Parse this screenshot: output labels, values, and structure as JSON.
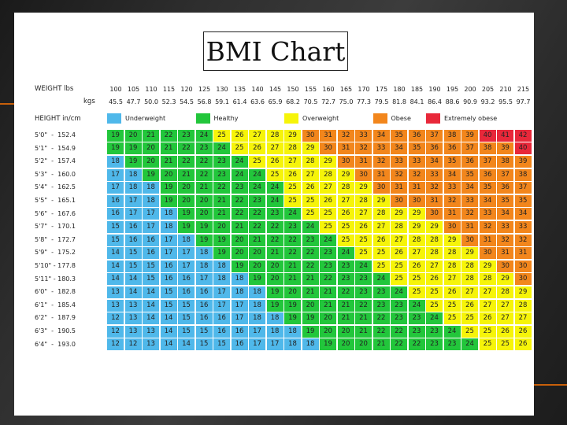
{
  "title": "BMI Chart",
  "header": {
    "weight_label": "WEIGHT lbs",
    "kgs_label": "kgs",
    "height_label": "HEIGHT in/cm"
  },
  "colors": {
    "underweight": "#4fb8ea",
    "healthy": "#22c63b",
    "overweight": "#f6f409",
    "obese": "#f2861c",
    "extremely_obese": "#e8283a"
  },
  "chart_data": {
    "type": "table",
    "weights_lbs": [
      "100",
      "105",
      "110",
      "115",
      "120",
      "125",
      "130",
      "135",
      "140",
      "145",
      "150",
      "155",
      "160",
      "165",
      "170",
      "175",
      "180",
      "185",
      "190",
      "195",
      "200",
      "205",
      "210",
      "215"
    ],
    "weights_kgs": [
      "45.5",
      "47.7",
      "50.0",
      "52.3",
      "54.5",
      "56.8",
      "59.1",
      "61.4",
      "63.6",
      "65.9",
      "68.2",
      "70.5",
      "72.7",
      "75.0",
      "77.3",
      "79.5",
      "81.8",
      "84.1",
      "86.4",
      "88.6",
      "90.9",
      "93.2",
      "95.5",
      "97.7"
    ],
    "legend": [
      {
        "label": "Underweight",
        "category": "underweight"
      },
      {
        "label": "Healthy",
        "category": "healthy"
      },
      {
        "label": "Overweight",
        "category": "overweight"
      },
      {
        "label": "Obese",
        "category": "obese"
      },
      {
        "label": "Extremely obese",
        "category": "extremely_obese"
      }
    ],
    "rows": [
      {
        "height": "5'0\"  -  152.4",
        "values": [
          19,
          20,
          21,
          22,
          23,
          24,
          25,
          26,
          27,
          28,
          29,
          30,
          31,
          32,
          33,
          34,
          35,
          36,
          37,
          38,
          39,
          40,
          41,
          42
        ]
      },
      {
        "height": "5'1\"  -  154.9",
        "values": [
          19,
          19,
          20,
          21,
          22,
          23,
          24,
          25,
          26,
          27,
          28,
          29,
          30,
          31,
          32,
          33,
          34,
          35,
          36,
          36,
          37,
          38,
          39,
          40
        ]
      },
      {
        "height": "5'2\"  -  157.4",
        "values": [
          18,
          19,
          20,
          21,
          22,
          22,
          23,
          24,
          25,
          26,
          27,
          28,
          29,
          30,
          31,
          32,
          33,
          33,
          34,
          35,
          36,
          37,
          38,
          39
        ]
      },
      {
        "height": "5'3\"  -  160.0",
        "values": [
          17,
          18,
          19,
          20,
          21,
          22,
          23,
          24,
          24,
          25,
          26,
          27,
          28,
          29,
          30,
          31,
          32,
          32,
          33,
          34,
          35,
          36,
          37,
          38
        ]
      },
      {
        "height": "5'4\"  -  162.5",
        "values": [
          17,
          18,
          18,
          19,
          20,
          21,
          22,
          23,
          24,
          24,
          25,
          26,
          27,
          28,
          29,
          30,
          31,
          31,
          32,
          33,
          34,
          35,
          36,
          37
        ]
      },
      {
        "height": "5'5\"  -  165.1",
        "values": [
          16,
          17,
          18,
          19,
          20,
          20,
          21,
          22,
          23,
          24,
          25,
          25,
          26,
          27,
          28,
          29,
          30,
          30,
          31,
          32,
          33,
          34,
          35,
          35
        ]
      },
      {
        "height": "5'6\"  -  167.6",
        "values": [
          16,
          17,
          17,
          18,
          19,
          20,
          21,
          22,
          22,
          23,
          24,
          25,
          25,
          26,
          27,
          28,
          29,
          29,
          30,
          31,
          32,
          33,
          34,
          34
        ]
      },
      {
        "height": "5'7\"  -  170.1",
        "values": [
          15,
          16,
          17,
          18,
          19,
          19,
          20,
          21,
          22,
          22,
          23,
          24,
          25,
          25,
          26,
          27,
          28,
          29,
          29,
          30,
          31,
          32,
          33,
          33
        ]
      },
      {
        "height": "5'8\"  -  172.7",
        "values": [
          15,
          16,
          16,
          17,
          18,
          19,
          19,
          20,
          21,
          22,
          22,
          23,
          24,
          25,
          25,
          26,
          27,
          28,
          28,
          29,
          30,
          31,
          32,
          32
        ]
      },
      {
        "height": "5'9\"  -  175.2",
        "values": [
          14,
          15,
          16,
          17,
          17,
          18,
          19,
          20,
          20,
          21,
          22,
          22,
          23,
          24,
          25,
          25,
          26,
          27,
          28,
          28,
          29,
          30,
          31,
          31
        ]
      },
      {
        "height": "5'10\" - 177.8",
        "values": [
          14,
          15,
          15,
          16,
          17,
          18,
          18,
          19,
          20,
          20,
          21,
          22,
          23,
          23,
          24,
          25,
          25,
          26,
          27,
          28,
          28,
          29,
          30,
          30
        ]
      },
      {
        "height": "5'11\" - 180.3",
        "values": [
          14,
          14,
          15,
          16,
          16,
          17,
          18,
          18,
          19,
          20,
          21,
          21,
          22,
          23,
          23,
          24,
          25,
          25,
          26,
          27,
          28,
          28,
          29,
          30
        ]
      },
      {
        "height": "6'0\"  -  182.8",
        "values": [
          13,
          14,
          14,
          15,
          16,
          16,
          17,
          18,
          18,
          19,
          20,
          21,
          21,
          22,
          23,
          23,
          24,
          25,
          25,
          26,
          27,
          27,
          28,
          29
        ]
      },
      {
        "height": "6'1\"  -  185.4",
        "values": [
          13,
          13,
          14,
          15,
          15,
          16,
          17,
          17,
          18,
          19,
          19,
          20,
          21,
          21,
          22,
          23,
          23,
          24,
          25,
          25,
          26,
          27,
          27,
          28
        ]
      },
      {
        "height": "6'2\"  -  187.9",
        "values": [
          12,
          13,
          14,
          14,
          15,
          16,
          16,
          17,
          18,
          18,
          19,
          19,
          20,
          21,
          21,
          22,
          23,
          23,
          24,
          25,
          25,
          26,
          27,
          27
        ]
      },
      {
        "height": "6'3\"  -  190.5",
        "values": [
          12,
          13,
          13,
          14,
          15,
          15,
          16,
          16,
          17,
          18,
          18,
          19,
          20,
          20,
          21,
          22,
          22,
          23,
          23,
          24,
          25,
          25,
          26,
          26
        ]
      },
      {
        "height": "6'4\"  -  193.0",
        "values": [
          12,
          12,
          13,
          14,
          14,
          15,
          15,
          16,
          17,
          17,
          18,
          18,
          19,
          20,
          20,
          21,
          22,
          22,
          23,
          23,
          24,
          25,
          25,
          26
        ]
      }
    ]
  }
}
